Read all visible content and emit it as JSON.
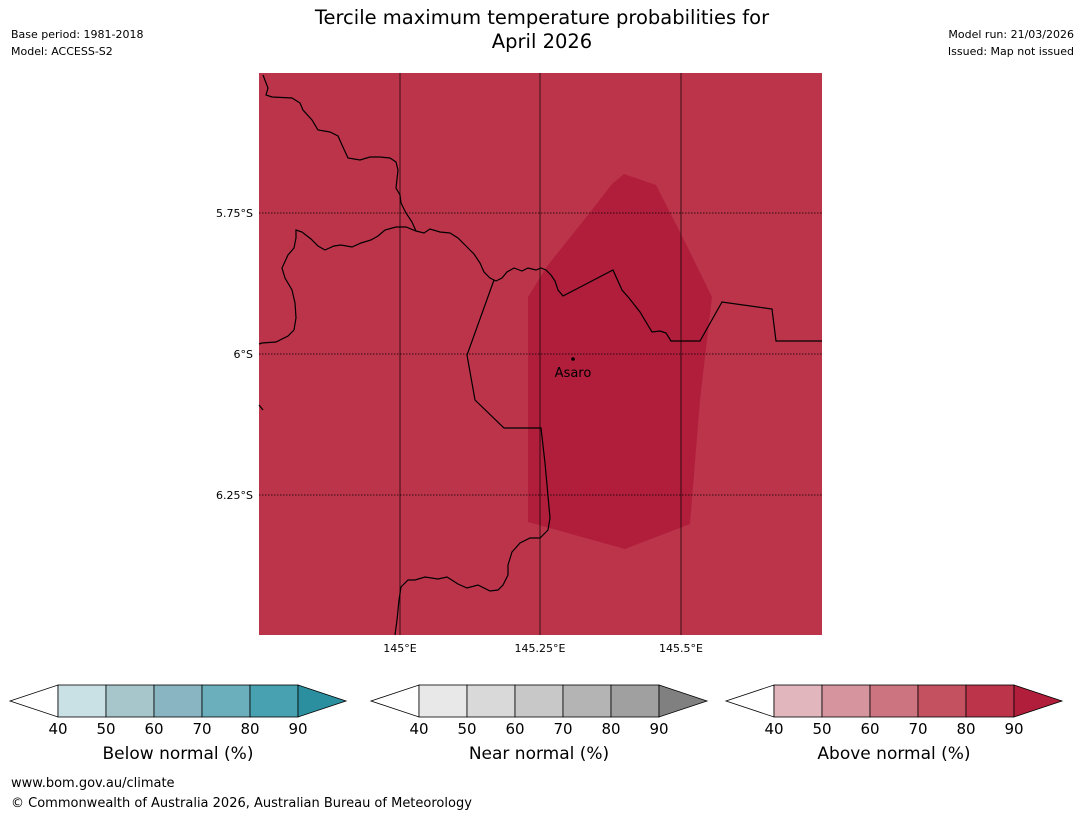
{
  "header": {
    "title_line1": "Tercile maximum temperature probabilities for",
    "title_line2": "April 2026",
    "base_period": "Base period: 1981-2018",
    "model": "Model: ACCESS-S2",
    "model_run": "Model run: 21/03/2026",
    "issued": "Issued: Map not issued"
  },
  "map": {
    "background_color": "#bc344a",
    "high_prob_color": "#b01e3b",
    "latitude_labels": [
      "5.75°S",
      "6°S",
      "6.25°S"
    ],
    "longitude_labels": [
      "145°E",
      "145.25°E",
      "145.5°E"
    ],
    "place_label": "Asaro"
  },
  "colorbars": [
    {
      "label": "Below normal (%)",
      "ticks": [
        "40",
        "50",
        "60",
        "70",
        "80",
        "90"
      ],
      "colors": [
        "#ffffff",
        "#c9e0e5",
        "#a7c6cc",
        "#89b4c1",
        "#6baebc",
        "#48a1b0",
        "#2b8f9f"
      ]
    },
    {
      "label": "Near normal (%)",
      "ticks": [
        "40",
        "50",
        "60",
        "70",
        "80",
        "90"
      ],
      "colors": [
        "#ffffff",
        "#e8e8e8",
        "#d9d9d9",
        "#c8c8c8",
        "#b4b4b4",
        "#a0a0a0",
        "#808080"
      ]
    },
    {
      "label": "Above normal (%)",
      "ticks": [
        "40",
        "50",
        "60",
        "70",
        "80",
        "90"
      ],
      "colors": [
        "#ffffff",
        "#e1b6bd",
        "#d6949e",
        "#cc747f",
        "#c4515f",
        "#bc344a",
        "#b01e3b"
      ]
    }
  ],
  "footer": {
    "url": "www.bom.gov.au/climate",
    "copyright": "© Commonwealth of Australia 2026, Australian Bureau of Meteorology"
  }
}
